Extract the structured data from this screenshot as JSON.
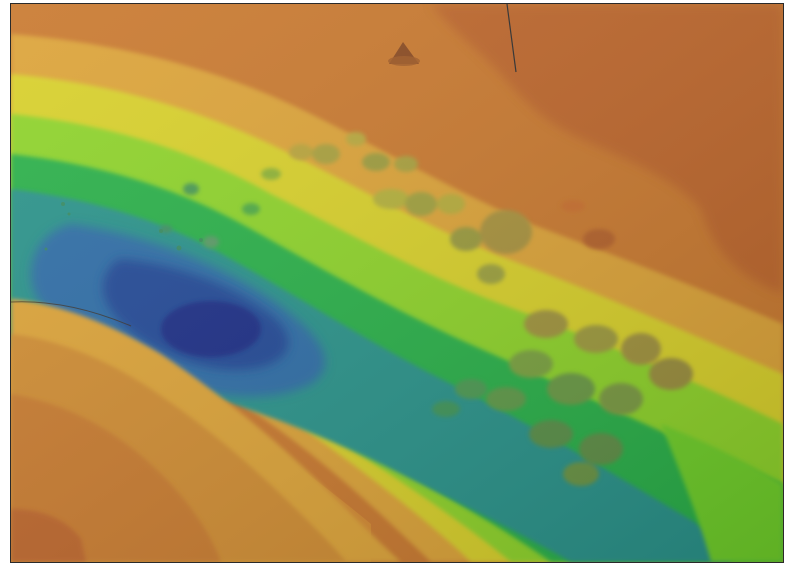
{
  "viewer": {
    "colors": {
      "deep": "#1d2f86",
      "mid_blue": "#2f6da6",
      "teal": "#2a938a",
      "green": "#29b04a",
      "lime": "#8ed32b",
      "yellow": "#d8d02a",
      "orange_light": "#dca337",
      "orange": "#c9792f",
      "orange_dark": "#b9602b",
      "frame": "#2a2a2a"
    },
    "features": [
      "bathymetric-surface",
      "deep-basin",
      "shoal-ridges",
      "peaks"
    ]
  }
}
